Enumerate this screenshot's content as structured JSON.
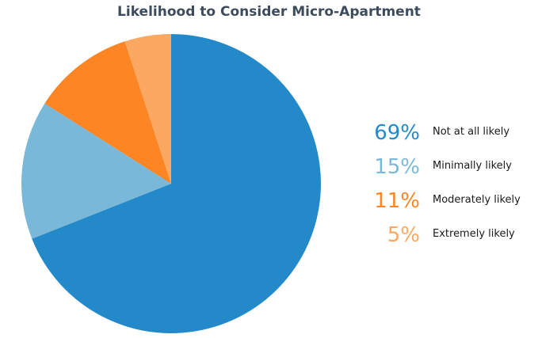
{
  "chart_data": {
    "type": "pie",
    "title": "Likelihood to Consider Micro-Apartment",
    "slices": [
      {
        "label": "Not at all likely",
        "value": 69,
        "display": "69%",
        "color": "#2389c8"
      },
      {
        "label": "Minimally likely",
        "value": 15,
        "display": "15%",
        "color": "#7ab8d9"
      },
      {
        "label": "Moderately likely",
        "value": 11,
        "display": "11%",
        "color": "#fd8524"
      },
      {
        "label": "Extremely likely",
        "value": 5,
        "display": "5%",
        "color": "#fda862"
      }
    ],
    "legend_position": "right"
  }
}
